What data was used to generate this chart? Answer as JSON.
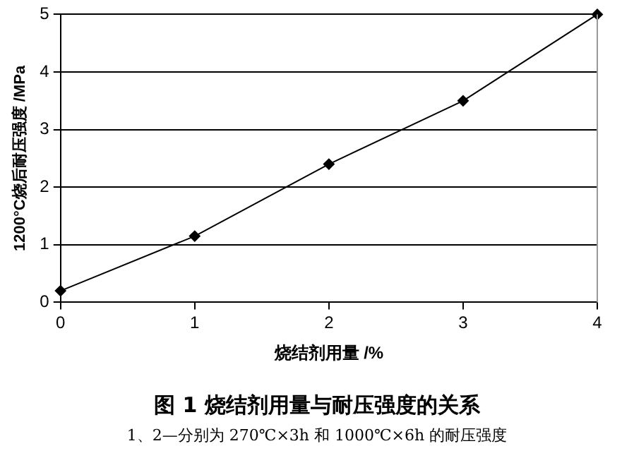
{
  "chart_data": {
    "type": "line",
    "title": "图 1 烧结剂用量与耐压强度的关系",
    "subtitle": "1、2—分别为 270℃×3h 和 1000℃×6h 的耐压强度",
    "xlabel": "烧结剂用量 /%",
    "ylabel": "1200°C烧后耐压强度 /MPa",
    "x": [
      0,
      1,
      2,
      3,
      4
    ],
    "series": [
      {
        "color": "#000000",
        "values": [
          0.2,
          1.15,
          2.4,
          3.5,
          5.0
        ]
      }
    ],
    "xlim": [
      0,
      4
    ],
    "xticks": [
      0,
      1,
      2,
      3,
      4
    ],
    "ylim": [
      0,
      5
    ],
    "yticks": [
      0,
      1,
      2,
      3,
      4,
      5
    ],
    "grid": "y",
    "legend": false,
    "marker": "diamond",
    "line_style": "solid"
  }
}
